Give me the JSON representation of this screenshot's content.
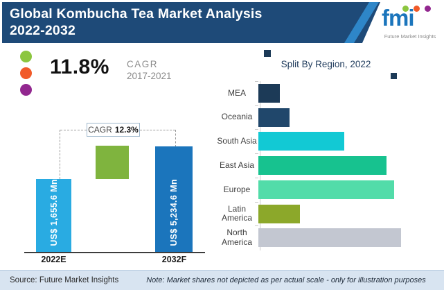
{
  "header": {
    "title_line1": "Global Kombucha Tea Market Analysis",
    "title_line2": "2022-2032",
    "logo": {
      "text": "fmi",
      "tagline": "Future Market Insights",
      "balloon_colors": [
        "#8CC63F",
        "#F15A29",
        "#92278F"
      ]
    }
  },
  "kpi": {
    "value": "11.8%",
    "label": "CAGR",
    "period": "2017-2021",
    "dot_colors": [
      "#8CC63F",
      "#F15A29",
      "#92278F"
    ]
  },
  "chart_data": [
    {
      "type": "bar",
      "orientation": "vertical",
      "title": "",
      "categories": [
        "2022E",
        "2032F"
      ],
      "values": [
        1655.6,
        5234.6
      ],
      "unit": "US$ Mn",
      "bar_labels": [
        "US$ 1,655.6 Mn",
        "US$ 5,234.6 Mn"
      ],
      "bar_colors": [
        "#29ABE2",
        "#1B75BC"
      ],
      "annotation": {
        "label": "CAGR",
        "value": "12.3%"
      },
      "layout_note": "bar heights illustrative, not drawn to value scale"
    },
    {
      "type": "bar",
      "orientation": "horizontal",
      "title": "Split By Region, 2022",
      "categories": [
        "MEA",
        "Oceania",
        "South Asia",
        "East Asia",
        "Europe",
        "Latin America",
        "North America"
      ],
      "values": [
        15,
        22,
        60,
        90,
        95,
        29,
        100
      ],
      "value_scale": "relative bar length, max = 100 (no numeric axis labels shown)",
      "bar_colors": [
        "#1C3A57",
        "#20476B",
        "#12C9D4",
        "#17C28F",
        "#52DCA9",
        "#8CA82A",
        "#C3C7D1"
      ],
      "legend_position": "none",
      "grid": false
    }
  ],
  "footer": {
    "source": "Source: Future Market Insights",
    "note": "Note: Market shares not depicted as per actual scale - only for illustration purposes"
  },
  "colors": {
    "header_bg": "#1E4A78",
    "diagonal_stripe": "#2E86C8",
    "logo_blue": "#1B75BC",
    "green_square": "#7FB43E",
    "region_title": "#1F3B5C"
  }
}
